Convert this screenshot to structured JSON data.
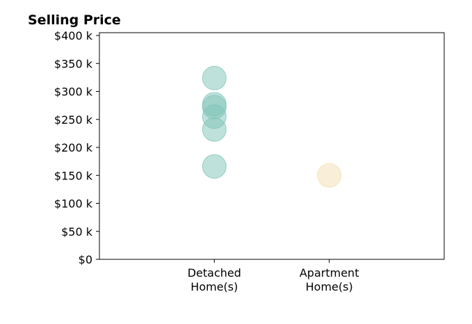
{
  "chart_data": {
    "type": "scatter",
    "title": "Selling Price",
    "xlabel": "",
    "ylabel": "",
    "categories": [
      "Detached\nHome(s)",
      "Apartment\nHome(s)"
    ],
    "ylim": [
      0,
      405000
    ],
    "yticks": [
      {
        "value": 0,
        "label": "$0"
      },
      {
        "value": 50000,
        "label": "$50 k"
      },
      {
        "value": 100000,
        "label": "$100 k"
      },
      {
        "value": 150000,
        "label": "$150 k"
      },
      {
        "value": 200000,
        "label": "$200 k"
      },
      {
        "value": 250000,
        "label": "$250 k"
      },
      {
        "value": 300000,
        "label": "$300 k"
      },
      {
        "value": 350000,
        "label": "$350 k"
      },
      {
        "value": 400000,
        "label": "$400 k"
      }
    ],
    "points": [
      {
        "category": "Detached\nHome(s)",
        "value": 324000,
        "color": "#7fc4b8"
      },
      {
        "category": "Detached\nHome(s)",
        "value": 277000,
        "color": "#7fc4b8"
      },
      {
        "category": "Detached\nHome(s)",
        "value": 272000,
        "color": "#7fc4b8"
      },
      {
        "category": "Detached\nHome(s)",
        "value": 255000,
        "color": "#7fc4b8"
      },
      {
        "category": "Detached\nHome(s)",
        "value": 232000,
        "color": "#7fc4b8"
      },
      {
        "category": "Detached\nHome(s)",
        "value": 166000,
        "color": "#7fc4b8"
      },
      {
        "category": "Apartment\nHome(s)",
        "value": 150000,
        "color": "#f3deb0"
      }
    ],
    "grid": false,
    "legend": "none"
  }
}
